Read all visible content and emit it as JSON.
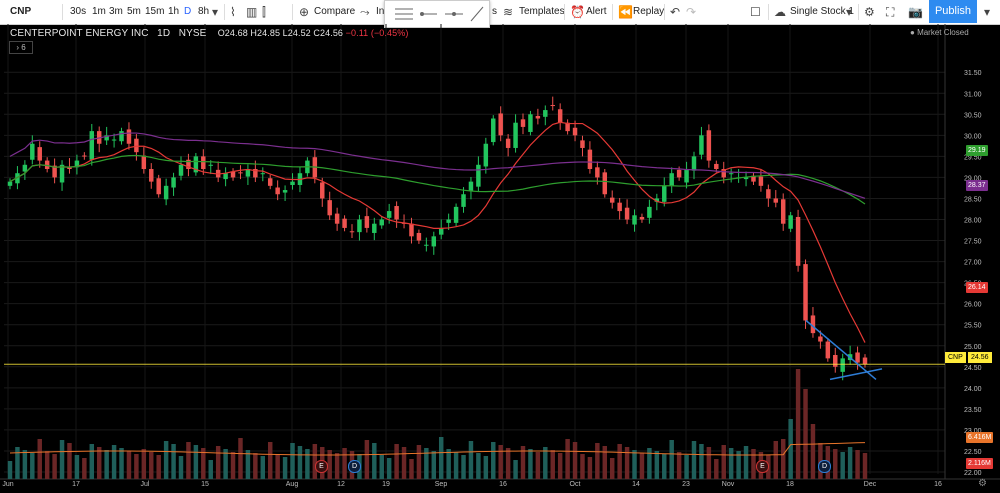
{
  "toolbar": {
    "symbol": "CNP",
    "intervals": [
      "30s",
      "1m",
      "3m",
      "5m",
      "15m",
      "1h",
      "D",
      "8h"
    ],
    "active_interval": "D",
    "compare_label": "Compare",
    "indicators_label": "In",
    "indicators_tail": "s",
    "templates_label": "Templates",
    "alert_label": "Alert",
    "replay_label": "Replay",
    "layout_label": "Single Stock 1",
    "publish_label": "Publish"
  },
  "legend": {
    "title": "CENTERPOINT ENERGY INC",
    "interval": "1D",
    "exchange": "NYSE",
    "open": "O24.68",
    "high": "H24.85",
    "low": "L24.52",
    "close": "C24.56",
    "change": "−0.11 (−0.45%)",
    "market_status": "Market Closed",
    "collapsed_count": "6"
  },
  "colors": {
    "up": "#26a69a",
    "up_candle": "#22c55e",
    "down": "#ef5350",
    "sma_red": "#e53935",
    "sma_green": "#2e9e2e",
    "sma_purple": "#7b2f8f",
    "trendline": "#2e7dd6",
    "last_price": "#ffeb3b"
  },
  "badges": {
    "green_ma": "29.19",
    "purple_ma": "28.37",
    "red_ma": "26.14",
    "last_price": "24.56",
    "symbol_tag": "CNP",
    "vol_ma": "6.416M",
    "vol": "2.116M"
  },
  "events": [
    "E",
    "D",
    "E",
    "D"
  ],
  "chart_data": {
    "type": "candlestick",
    "title": "CENTERPOINT ENERGY INC",
    "y_ticks": [
      "31.50",
      "31.00",
      "30.50",
      "30.00",
      "29.50",
      "29.00",
      "28.50",
      "28.00",
      "27.50",
      "27.00",
      "26.50",
      "26.00",
      "25.50",
      "25.00",
      "24.50",
      "24.00",
      "23.50",
      "23.00",
      "22.50",
      "22.00"
    ],
    "ylim": [
      22.0,
      31.6
    ],
    "x_ticks": [
      "Jun",
      "17",
      "Jul",
      "15",
      "Aug",
      "12",
      "19",
      "Sep",
      "16",
      "Oct",
      "14",
      "23",
      "Nov",
      "18",
      "Dec",
      "16"
    ],
    "last_price": 24.56,
    "sma_green_last": 29.19,
    "sma_purple_last": 28.37,
    "sma_red_last": 26.14,
    "volume_ma_last": "6.416M",
    "volume_last": "2.116M",
    "closes": [
      28.9,
      29.1,
      29.3,
      29.8,
      29.4,
      29.2,
      29.0,
      29.3,
      29.2,
      29.4,
      29.5,
      30.1,
      29.8,
      30.0,
      29.9,
      30.1,
      29.8,
      29.6,
      29.2,
      28.9,
      28.6,
      28.8,
      29.0,
      29.3,
      29.2,
      29.5,
      29.2,
      29.3,
      29.0,
      29.1,
      29.0,
      29.1,
      29.2,
      29.0,
      29.1,
      28.8,
      28.6,
      28.7,
      28.9,
      29.1,
      29.4,
      29.0,
      28.5,
      28.1,
      27.9,
      27.8,
      27.7,
      28.0,
      27.8,
      27.9,
      28.0,
      28.2,
      28.0,
      27.9,
      27.6,
      27.5,
      27.4,
      27.6,
      27.8,
      28.0,
      28.3,
      28.6,
      28.9,
      29.3,
      29.8,
      30.4,
      30.0,
      29.7,
      30.3,
      30.2,
      30.5,
      30.4,
      30.6,
      30.7,
      30.3,
      30.1,
      30.0,
      29.7,
      29.2,
      29.0,
      28.6,
      28.4,
      28.2,
      28.0,
      28.1,
      28.0,
      28.3,
      28.5,
      28.8,
      29.1,
      29.0,
      29.2,
      29.5,
      30.0,
      29.4,
      29.2,
      29.0,
      29.1,
      29.0,
      29.0,
      28.9,
      28.8,
      28.5,
      28.4,
      27.9,
      28.1,
      26.9,
      25.6,
      25.3,
      25.1,
      24.7,
      24.5,
      24.7,
      24.8,
      24.6,
      24.56
    ]
  }
}
